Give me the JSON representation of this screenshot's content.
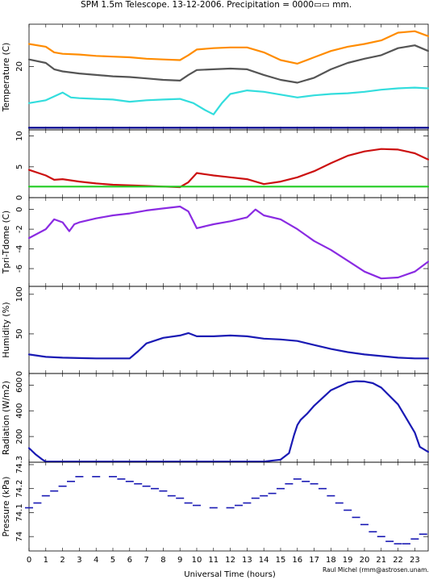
{
  "header": {
    "title": "SPM 1.5m Telescope. 13-12-2006. Precipitation = 0000▭▭ mm."
  },
  "footer": {
    "xlabel": "Universal Time (hours)",
    "credit": "Raul Michel (rmm@astrosen.unam.mx)"
  },
  "chart_data": [
    {
      "type": "line",
      "ylabel": "Temperature (C)",
      "ylim": [
        11,
        26
      ],
      "yticks": [
        20
      ],
      "xlim": [
        0,
        23.8
      ],
      "series": [
        {
          "color": "#ff8c00",
          "x": [
            0,
            1,
            1.5,
            2,
            3,
            4,
            5,
            6,
            7,
            8,
            9,
            9.5,
            10,
            11,
            12,
            13,
            14,
            15,
            16,
            17,
            18,
            19,
            20,
            21,
            22,
            23,
            23.8
          ],
          "y": [
            23.2,
            22.8,
            22.0,
            21.8,
            21.7,
            21.5,
            21.4,
            21.3,
            21.1,
            21.0,
            20.9,
            21.6,
            22.4,
            22.6,
            22.7,
            22.7,
            22.0,
            20.9,
            20.4,
            21.3,
            22.2,
            22.8,
            23.2,
            23.7,
            24.8,
            25.0,
            24.3
          ]
        },
        {
          "color": "#555555",
          "x": [
            0,
            1,
            1.5,
            2,
            3,
            4,
            5,
            6,
            7,
            8,
            9,
            9.5,
            10,
            11,
            12,
            13,
            14,
            15,
            16,
            17,
            18,
            19,
            20,
            21,
            22,
            23,
            23.8
          ],
          "y": [
            21.0,
            20.5,
            19.6,
            19.3,
            19.0,
            18.8,
            18.6,
            18.5,
            18.3,
            18.1,
            18.0,
            18.8,
            19.5,
            19.6,
            19.7,
            19.6,
            18.8,
            18.1,
            17.7,
            18.4,
            19.6,
            20.5,
            21.1,
            21.6,
            22.6,
            23.0,
            22.2
          ]
        },
        {
          "color": "#33dddd",
          "x": [
            0,
            1,
            2,
            2.5,
            3,
            4,
            5,
            6,
            7,
            8,
            9,
            9.8,
            10.5,
            11,
            11.5,
            12,
            13,
            14,
            15,
            16,
            17,
            18,
            19,
            20,
            21,
            22,
            23,
            23.8
          ],
          "y": [
            14.8,
            15.2,
            16.3,
            15.6,
            15.5,
            15.4,
            15.3,
            15.0,
            15.2,
            15.3,
            15.4,
            14.8,
            13.8,
            13.2,
            14.8,
            16.1,
            16.6,
            16.4,
            16.0,
            15.6,
            15.9,
            16.1,
            16.2,
            16.4,
            16.7,
            16.9,
            17.0,
            16.9
          ]
        },
        {
          "color": "#00008b",
          "x": [
            0,
            23.8
          ],
          "y": [
            11.3,
            11.3
          ]
        }
      ]
    },
    {
      "type": "line",
      "ylabel": "",
      "ylim": [
        0,
        11
      ],
      "yticks": [
        0,
        5,
        10
      ],
      "xlim": [
        0,
        23.8
      ],
      "series": [
        {
          "color": "#cc1111",
          "x": [
            0,
            1,
            1.5,
            2,
            3,
            4,
            5,
            6,
            7,
            8,
            9,
            9.5,
            10,
            11,
            12,
            13,
            14,
            15,
            16,
            17,
            18,
            19,
            20,
            21,
            22,
            23,
            23.8
          ],
          "y": [
            4.5,
            3.6,
            2.9,
            3.0,
            2.6,
            2.3,
            2.1,
            2.0,
            1.9,
            1.8,
            1.7,
            2.5,
            4.0,
            3.6,
            3.3,
            3.0,
            2.2,
            2.6,
            3.3,
            4.3,
            5.6,
            6.8,
            7.5,
            7.9,
            7.8,
            7.2,
            6.2
          ]
        },
        {
          "color": "#22cc22",
          "x": [
            0,
            23.8
          ],
          "y": [
            1.8,
            1.8
          ]
        }
      ]
    },
    {
      "type": "line",
      "ylabel": "Tpri-Tdome (C)",
      "ylim": [
        -7.8,
        1.2
      ],
      "yticks": [
        -6,
        -4,
        -2,
        0
      ],
      "xlim": [
        0,
        23.8
      ],
      "series": [
        {
          "color": "#8a2be2",
          "x": [
            0,
            1,
            1.5,
            2,
            2.4,
            2.7,
            3,
            4,
            5,
            6,
            7,
            8,
            9,
            9.5,
            10,
            11,
            12,
            13,
            13.5,
            14,
            15,
            16,
            17,
            18,
            19,
            20,
            21,
            22,
            23,
            23.8
          ],
          "y": [
            -2.9,
            -2.0,
            -1.0,
            -1.3,
            -2.2,
            -1.5,
            -1.3,
            -0.9,
            -0.6,
            -0.4,
            -0.1,
            0.1,
            0.3,
            -0.2,
            -1.9,
            -1.5,
            -1.2,
            -0.8,
            0.0,
            -0.6,
            -1.0,
            -2.0,
            -3.2,
            -4.1,
            -5.2,
            -6.3,
            -7.0,
            -6.9,
            -6.3,
            -5.3
          ]
        }
      ]
    },
    {
      "type": "line",
      "ylabel": "Humidity (%)",
      "ylim": [
        0,
        110
      ],
      "yticks": [
        0,
        50,
        100
      ],
      "xlim": [
        0,
        23.8
      ],
      "series": [
        {
          "color": "#1a1ab4",
          "x": [
            0,
            1,
            2,
            3,
            4,
            5,
            6,
            6.5,
            7,
            8,
            9,
            9.5,
            10,
            11,
            12,
            13,
            14,
            15,
            16,
            17,
            18,
            19,
            20,
            21,
            22,
            23,
            23.8
          ],
          "y": [
            24,
            21,
            20,
            19.5,
            19,
            19,
            19,
            28,
            38,
            45,
            48,
            51,
            47,
            47,
            48,
            47,
            44,
            43,
            41,
            36,
            31,
            27,
            24,
            22,
            20,
            19,
            19
          ]
        }
      ]
    },
    {
      "type": "line",
      "ylabel": "Radiation (W/m2)",
      "ylim": [
        0,
        690
      ],
      "yticks": [
        200,
        400,
        600
      ],
      "xlim": [
        0,
        23.8
      ],
      "series": [
        {
          "color": "#1a1ab4",
          "x": [
            0,
            0.4,
            0.8,
            1,
            5,
            10,
            14,
            15,
            15.5,
            15.8,
            16,
            16.2,
            16.6,
            17,
            18,
            19,
            19.5,
            20,
            20.5,
            21,
            22,
            23,
            23.3,
            23.8
          ],
          "y": [
            110,
            60,
            20,
            5,
            5,
            5,
            5,
            20,
            70,
            210,
            290,
            330,
            380,
            440,
            560,
            620,
            630,
            628,
            615,
            580,
            450,
            230,
            120,
            80
          ]
        }
      ]
    },
    {
      "type": "scatter",
      "ylabel": "Pressure (kPa)",
      "ylim": [
        73.94,
        74.31
      ],
      "yticks": [
        74,
        74.1,
        74.2,
        74.3
      ],
      "xlim": [
        0,
        23.8
      ],
      "series": [
        {
          "color": "#1a1ab4",
          "x": [
            0,
            0.5,
            1,
            1.5,
            2,
            2.5,
            3,
            4,
            5,
            5.5,
            6,
            6.5,
            7,
            7.5,
            8,
            8.5,
            9,
            9.5,
            10,
            11,
            12,
            12.5,
            13,
            13.5,
            14,
            14.5,
            15,
            15.5,
            16,
            16.5,
            17,
            17.5,
            18,
            18.5,
            19,
            19.5,
            20,
            20.5,
            21,
            21.5,
            22,
            22.5,
            23,
            23.5
          ],
          "y": [
            74.12,
            74.14,
            74.17,
            74.19,
            74.21,
            74.23,
            74.25,
            74.25,
            74.25,
            74.24,
            74.23,
            74.22,
            74.21,
            74.2,
            74.19,
            74.17,
            74.16,
            74.14,
            74.13,
            74.12,
            74.12,
            74.13,
            74.14,
            74.16,
            74.17,
            74.18,
            74.2,
            74.22,
            74.24,
            74.23,
            74.22,
            74.2,
            74.17,
            74.14,
            74.11,
            74.08,
            74.05,
            74.02,
            74.0,
            73.98,
            73.97,
            73.97,
            73.99,
            74.01
          ]
        }
      ]
    }
  ]
}
